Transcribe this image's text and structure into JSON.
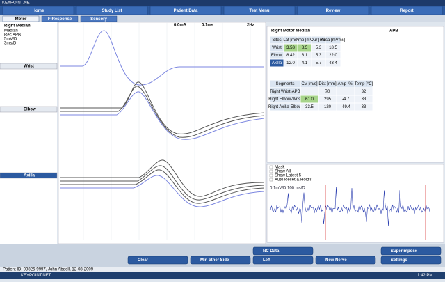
{
  "tabs": [
    "Home",
    "Study List",
    "Patient Data",
    "Test Menu",
    "Review",
    "Report"
  ],
  "subtabs": [
    "Motor",
    "F-Response",
    "Sensory"
  ],
  "left_panel": {
    "nerve": "Right Median",
    "lines": [
      "Median",
      "Rec APB",
      "5mV/D",
      "3ms/D"
    ]
  },
  "toolbar": [
    "0.0mA",
    "0.1ms",
    "2Hz"
  ],
  "traces": [
    "Wrist",
    "Elbow",
    "Axilla"
  ],
  "results": {
    "title": "Right Motor Median",
    "muscle": "APB",
    "sites_table": {
      "headers": [
        "Sites",
        "Lat [ms]",
        "Amp [mV]",
        "Dur [ms]",
        "Area [mVms]"
      ],
      "rows": [
        [
          "Wrist",
          "3.58",
          "8.5",
          "5.3",
          "18.5"
        ],
        [
          "Elbow",
          "8.42",
          "8.1",
          "5.3",
          "22.0"
        ],
        [
          "Axilla",
          "12.0",
          "4.1",
          "5.7",
          "43.4"
        ]
      ]
    },
    "segments_table": {
      "headers": [
        "Segments",
        "CV [m/s]",
        "Dist [mm]",
        "Amp [%]",
        "Temp [°C]"
      ],
      "rows": [
        [
          "Right Wrist-APB",
          null,
          "70",
          null,
          "32"
        ],
        [
          "Right Elbow-Wrist",
          "61.0",
          "295",
          "-4.7",
          "33"
        ],
        [
          "Right Axilla-Elbow",
          "33.5",
          "120",
          "-49.4",
          "33"
        ]
      ]
    }
  },
  "options": [
    "Mask",
    "Show All",
    "Show Latest 5",
    "Auto Reset & Hold's"
  ],
  "live_label": "0.1mV/D 100 ms/D",
  "buttons": [
    "Clear",
    "Min other Side",
    "NC Data",
    "Left",
    "New Nerve",
    "Superimpose",
    "Settings"
  ],
  "status": "Patient ID: 09826-9997, John Abdell, 12-08-2009",
  "taskbar": {
    "app": "KEYPOINT.NET",
    "time": "1:42 PM"
  }
}
